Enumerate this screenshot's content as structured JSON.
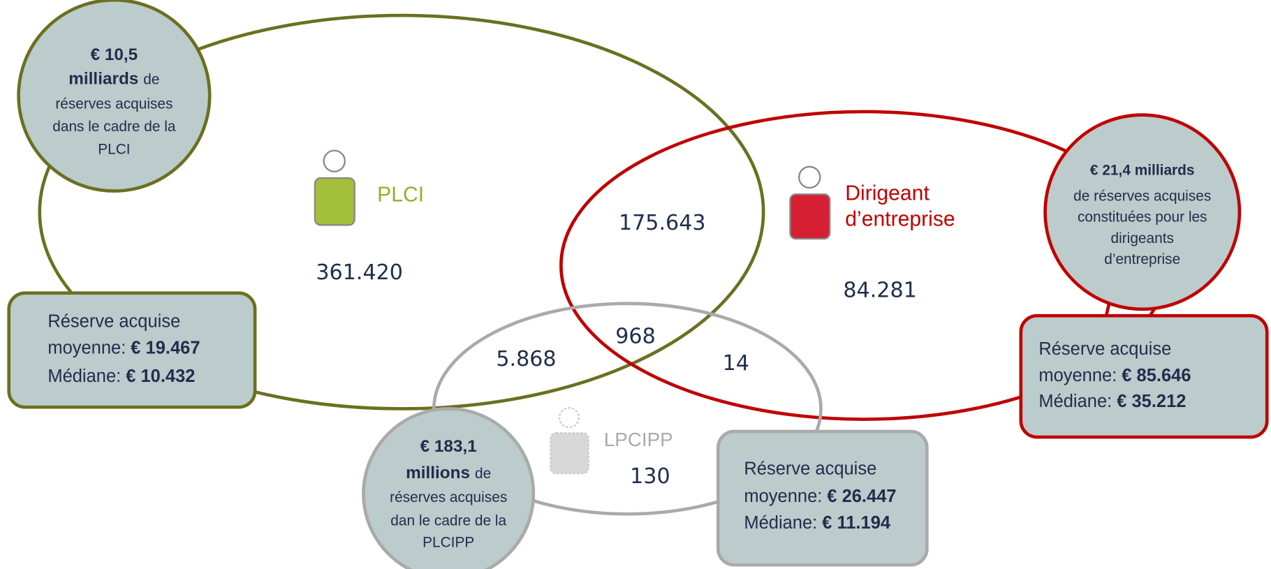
{
  "sets": [
    {
      "label": [
        "PLCI"
      ]
    },
    {
      "label": [
        "Dirigeant",
        "d’entreprise"
      ]
    },
    {
      "label": [
        "LPCIPP"
      ]
    }
  ],
  "regions": [
    {
      "count": "361.420"
    },
    {
      "count": "175.643"
    },
    {
      "count": "84.281"
    },
    {
      "count": "5.868"
    },
    {
      "count": "968"
    },
    {
      "count": "14"
    },
    {
      "count": "130"
    }
  ],
  "callouts": [
    {
      "lines": [
        [
          {
            "text": "€ 10,5",
            "bold": true
          }
        ],
        [
          {
            "text": "milliards",
            "bold": true
          },
          {
            "text": "de",
            "bold": false
          }
        ],
        [
          {
            "text": "réserves acquises",
            "bold": false
          }
        ],
        [
          {
            "text": "dans le cadre de la",
            "bold": false
          }
        ],
        [
          {
            "text": "PLCI",
            "bold": false
          }
        ]
      ]
    },
    {
      "lines": [
        [
          {
            "text": "€ 21,4 milliards",
            "bold": true
          }
        ],
        [
          {
            "text": "de réserves acquises",
            "bold": false
          }
        ],
        [
          {
            "text": "constituées pour les",
            "bold": false
          }
        ],
        [
          {
            "text": "dirigeants",
            "bold": false
          }
        ],
        [
          {
            "text": "d’entreprise",
            "bold": false
          }
        ]
      ]
    },
    {
      "lines": [
        [
          {
            "text": "€ 183,1",
            "bold": true
          }
        ],
        [
          {
            "text": "millions",
            "bold": true
          },
          {
            "text": "de",
            "bold": false
          }
        ],
        [
          {
            "text": "réserves acquises",
            "bold": false
          }
        ],
        [
          {
            "text": "dan le cadre de la",
            "bold": false
          }
        ],
        [
          {
            "text": "PLCIPP",
            "bold": false
          }
        ]
      ]
    }
  ],
  "boxes": [
    {
      "title": "Réserve acquise",
      "mean_label": "moyenne:",
      "mean": "€ 19.467",
      "median_label": "Médiane:",
      "median": "€ 10.432"
    },
    {
      "title": "Réserve acquise",
      "mean_label": "moyenne:",
      "mean": "€ 85.646",
      "median_label": "Médiane:",
      "median": "€ 35.212"
    },
    {
      "title": "Réserve acquise",
      "mean_label": "moyenne:",
      "mean": "€ 26.447",
      "median_label": "Médiane:",
      "median": "€ 11.194"
    }
  ]
}
